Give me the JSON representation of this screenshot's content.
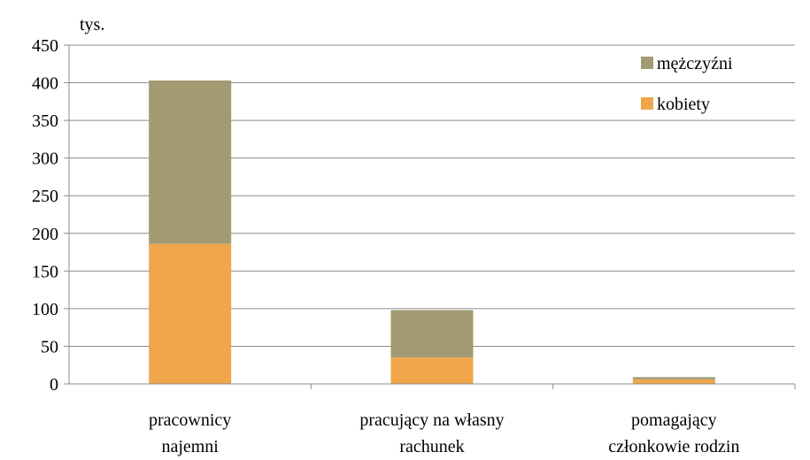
{
  "chart_data": {
    "type": "bar",
    "stacked": true,
    "unit_label": "tys.",
    "categories": [
      [
        "pracownicy",
        "najemni"
      ],
      [
        "pracujący na własny",
        "rachunek"
      ],
      [
        "pomagający",
        "członkowie rodzin"
      ]
    ],
    "series": [
      {
        "name": "kobiety",
        "color": "#F0A64A",
        "values": [
          186,
          35,
          6
        ]
      },
      {
        "name": "mężczyźni",
        "color": "#A29A73",
        "values": [
          217,
          63,
          3
        ]
      }
    ],
    "ylim": [
      0,
      450
    ],
    "yticks": [
      0,
      50,
      100,
      150,
      200,
      250,
      300,
      350,
      400,
      450
    ],
    "grid": true,
    "legend_position": "top-right",
    "legend_order": [
      "mężczyźni",
      "kobiety"
    ]
  }
}
